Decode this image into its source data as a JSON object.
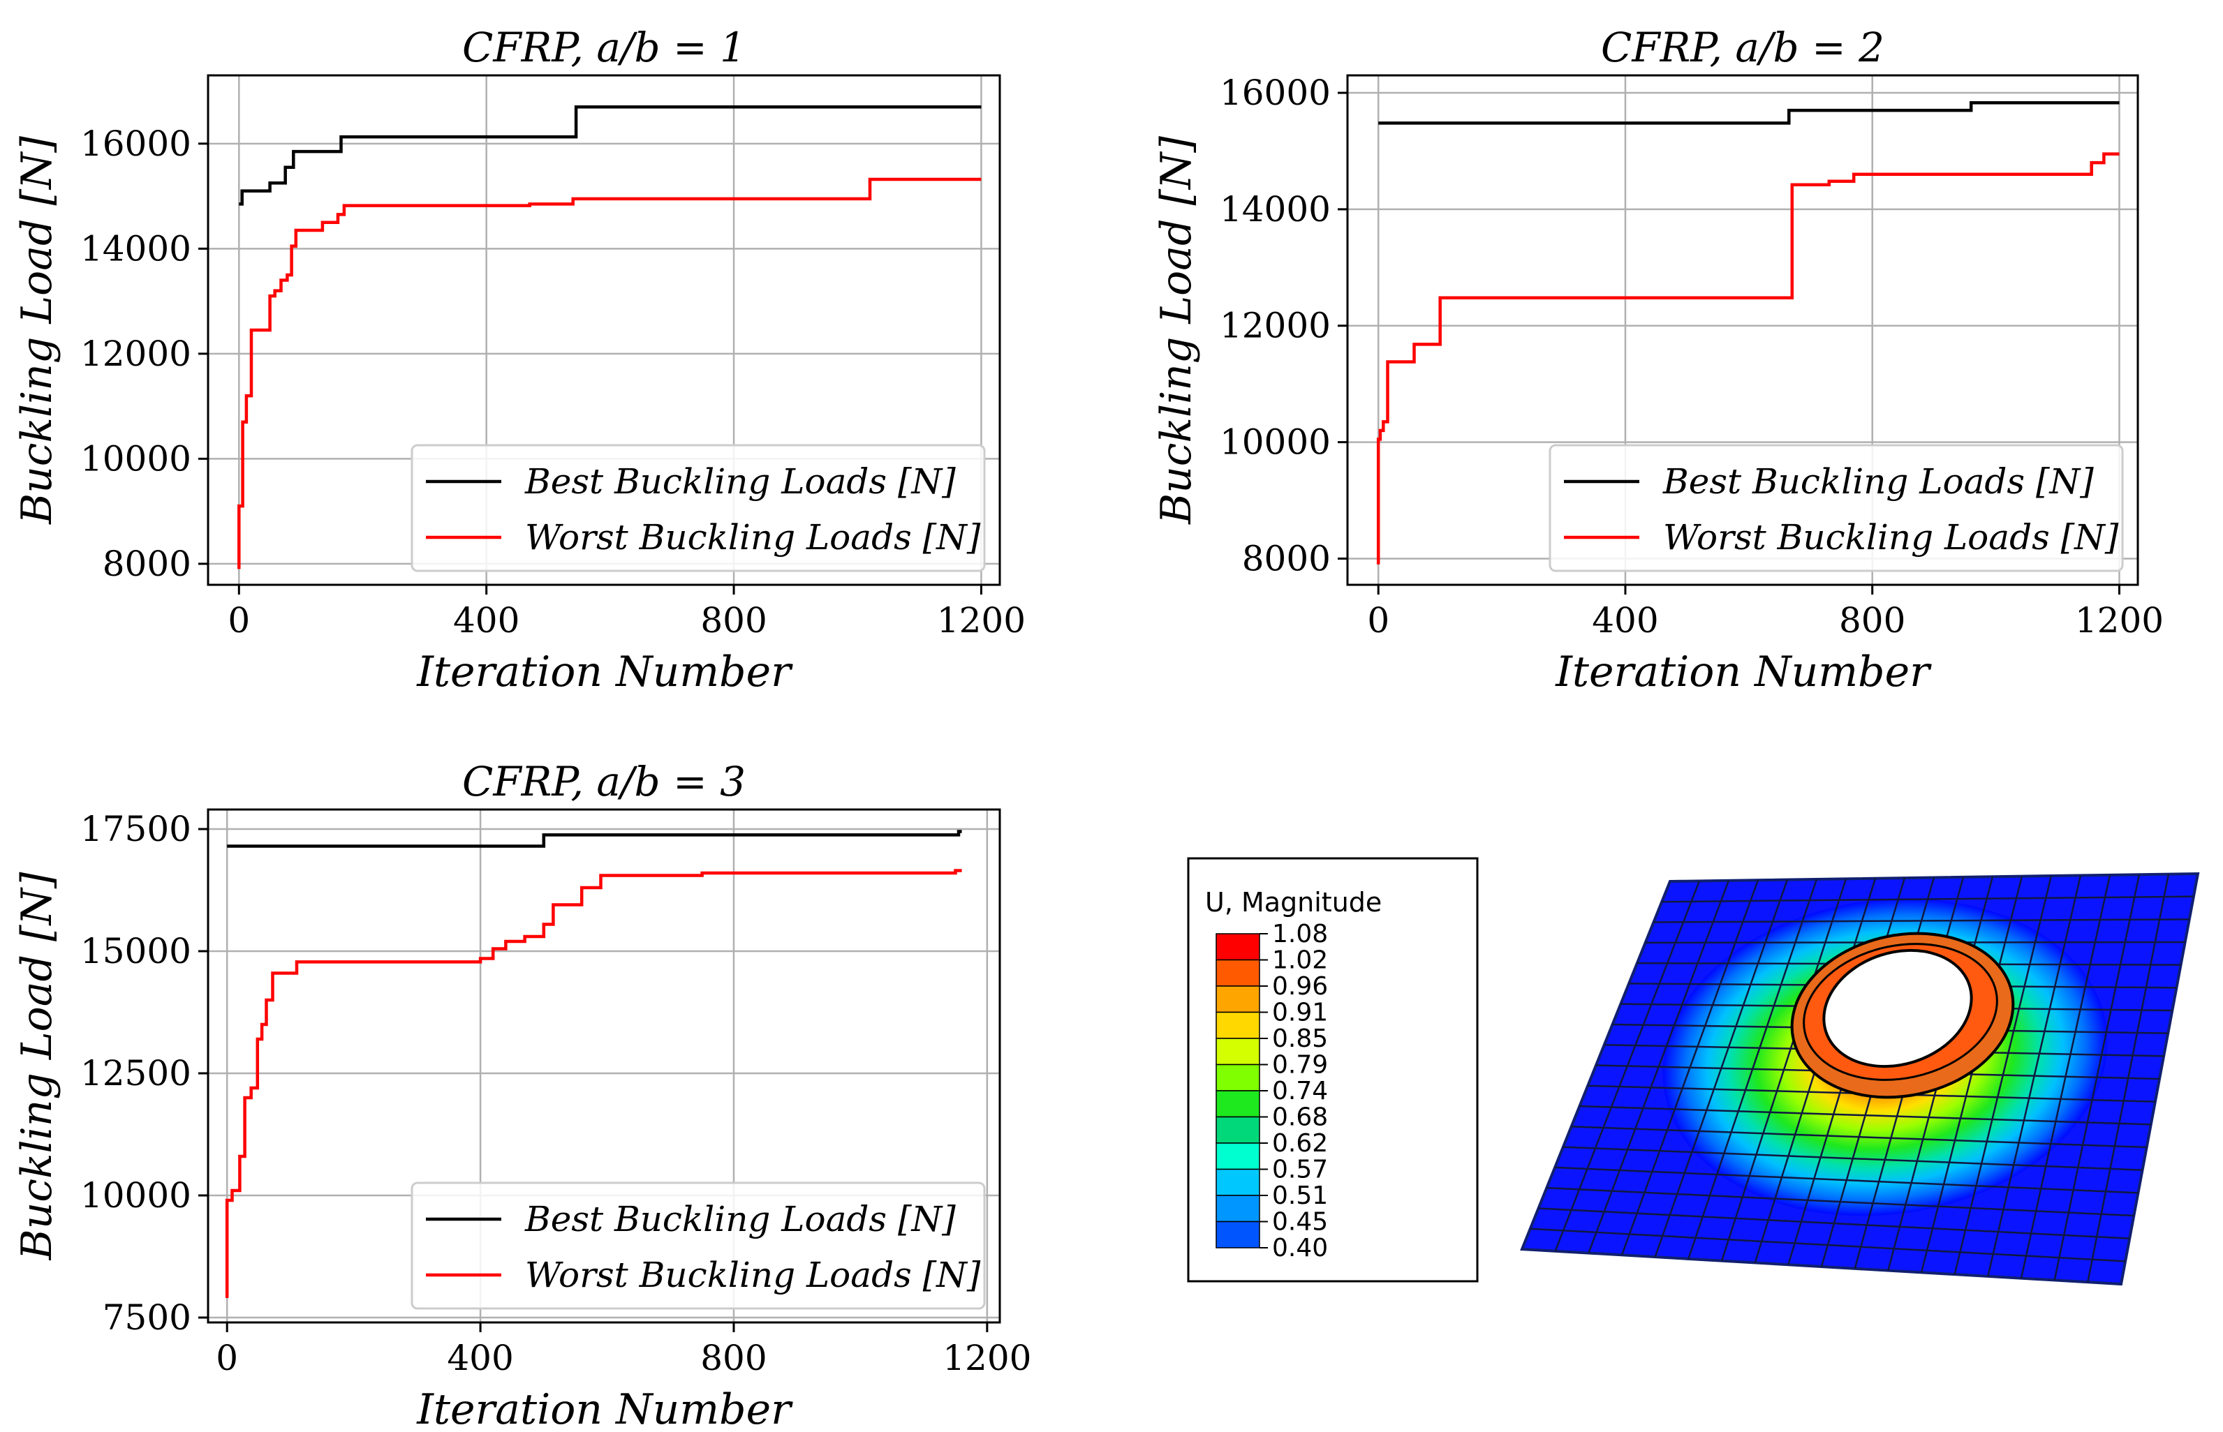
{
  "chart_data": [
    {
      "type": "line",
      "title": "CFRP, a/b = 1",
      "xlabel": "Iteration Number",
      "ylabel": "Buckling Load [N]",
      "xlim": [
        -50,
        1230
      ],
      "ylim": [
        7600,
        17300
      ],
      "xticks": [
        0,
        400,
        800,
        1200
      ],
      "yticks": [
        8000,
        10000,
        12000,
        14000,
        16000
      ],
      "grid": true,
      "legend_position": "lower-right",
      "series": [
        {
          "name": "Best Buckling Loads [N]",
          "color": "#000000",
          "x": [
            0,
            5,
            5,
            50,
            50,
            75,
            75,
            88,
            88,
            165,
            165,
            545,
            545,
            1200
          ],
          "y": [
            14850,
            14850,
            15100,
            15100,
            15250,
            15250,
            15550,
            15550,
            15850,
            15850,
            16130,
            16130,
            16700,
            16700
          ]
        },
        {
          "name": "Worst Buckling Loads [N]",
          "color": "#ff0000",
          "x": [
            0,
            0,
            6,
            6,
            12,
            12,
            20,
            20,
            28,
            28,
            50,
            50,
            58,
            58,
            68,
            68,
            78,
            78,
            85,
            85,
            92,
            92,
            135,
            135,
            160,
            160,
            170,
            170,
            470,
            470,
            540,
            540,
            1020,
            1020,
            1200
          ],
          "y": [
            7900,
            9100,
            9100,
            10700,
            10700,
            11200,
            11200,
            12450,
            12450,
            12450,
            12450,
            13100,
            13100,
            13200,
            13200,
            13400,
            13400,
            13500,
            13500,
            14050,
            14050,
            14350,
            14350,
            14500,
            14500,
            14650,
            14650,
            14820,
            14820,
            14850,
            14850,
            14950,
            14950,
            15320,
            15320
          ]
        }
      ]
    },
    {
      "type": "line",
      "title": "CFRP, a/b = 2",
      "xlabel": "Iteration Number",
      "ylabel": "Buckling Load [N]",
      "xlim": [
        -50,
        1230
      ],
      "ylim": [
        7550,
        16300
      ],
      "xticks": [
        0,
        400,
        800,
        1200
      ],
      "yticks": [
        8000,
        10000,
        12000,
        14000,
        16000
      ],
      "grid": true,
      "legend_position": "lower-right",
      "series": [
        {
          "name": "Best Buckling Loads [N]",
          "color": "#000000",
          "x": [
            0,
            665,
            665,
            960,
            960,
            1200
          ],
          "y": [
            15480,
            15480,
            15700,
            15700,
            15830,
            15830
          ]
        },
        {
          "name": "Worst Buckling Loads [N]",
          "color": "#ff0000",
          "x": [
            0,
            0,
            3,
            3,
            8,
            8,
            15,
            15,
            58,
            58,
            100,
            100,
            670,
            670,
            730,
            730,
            770,
            770,
            1155,
            1155,
            1175,
            1175,
            1200
          ],
          "y": [
            7900,
            10050,
            10050,
            10200,
            10200,
            10350,
            10350,
            11380,
            11380,
            11680,
            11680,
            12480,
            12480,
            14420,
            14420,
            14480,
            14480,
            14600,
            14600,
            14800,
            14800,
            14950,
            14950
          ]
        }
      ]
    },
    {
      "type": "line",
      "title": "CFRP, a/b = 3",
      "xlabel": "Iteration Number",
      "ylabel": "Buckling Load [N]",
      "xlim": [
        -30,
        1220
      ],
      "ylim": [
        7400,
        17900
      ],
      "xticks": [
        0,
        400,
        800,
        1200
      ],
      "yticks": [
        7500,
        10000,
        12500,
        15000,
        17500
      ],
      "grid": true,
      "legend_position": "lower-right",
      "series": [
        {
          "name": "Best Buckling Loads [N]",
          "color": "#000000",
          "x": [
            0,
            500,
            500,
            1155,
            1155,
            1160
          ],
          "y": [
            17150,
            17150,
            17380,
            17380,
            17450,
            17450
          ]
        },
        {
          "name": "Worst Buckling Loads [N]",
          "color": "#ff0000",
          "x": [
            0,
            0,
            8,
            8,
            20,
            20,
            28,
            28,
            38,
            38,
            48,
            48,
            55,
            55,
            62,
            62,
            72,
            72,
            110,
            110,
            400,
            400,
            420,
            420,
            440,
            440,
            470,
            470,
            500,
            500,
            515,
            515,
            560,
            560,
            590,
            590,
            750,
            750,
            1150,
            1150,
            1160
          ],
          "y": [
            7900,
            9900,
            9900,
            10100,
            10100,
            10800,
            10800,
            12000,
            12000,
            12200,
            12200,
            13200,
            13200,
            13500,
            13500,
            14000,
            14000,
            14550,
            14550,
            14780,
            14780,
            14850,
            14850,
            15050,
            15050,
            15200,
            15200,
            15300,
            15300,
            15550,
            15550,
            15950,
            15950,
            16300,
            16300,
            16550,
            16550,
            16600,
            16600,
            16650,
            16650
          ]
        }
      ]
    }
  ],
  "contour": {
    "title": "U, Magnitude",
    "levels": [
      "1.08",
      "1.02",
      "0.96",
      "0.91",
      "0.85",
      "0.79",
      "0.74",
      "0.68",
      "0.62",
      "0.57",
      "0.51",
      "0.45",
      "0.40"
    ],
    "colors": [
      "#ff0000",
      "#ff5a00",
      "#ffa500",
      "#ffd800",
      "#d4ff00",
      "#7fff00",
      "#1ee81e",
      "#00d87a",
      "#00ffd0",
      "#00c8ff",
      "#0096ff",
      "#0055ff",
      "#0000ff"
    ]
  }
}
